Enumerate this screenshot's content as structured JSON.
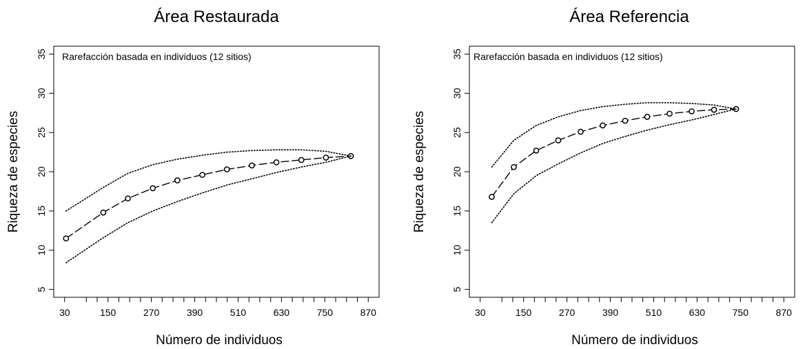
{
  "chart_data": [
    {
      "type": "line",
      "title": "Área Restaurada",
      "annotation": "Rarefacción basada en individuos (12 sitios)",
      "xlabel": "Número de individuos",
      "ylabel": "Riqueza de especies",
      "xlim": [
        0,
        900
      ],
      "ylim": [
        4,
        36
      ],
      "x_ticks": [
        30,
        150,
        270,
        390,
        510,
        630,
        750,
        870
      ],
      "x_minor_ticks": [
        90,
        120,
        180,
        210,
        240,
        300,
        330,
        360,
        420,
        450,
        480,
        540,
        570,
        600,
        660,
        690,
        720,
        780,
        810,
        840
      ],
      "y_ticks": [
        5,
        10,
        15,
        20,
        25,
        30,
        35
      ],
      "series": [
        {
          "role": "estimate",
          "style": "dashed-with-circles",
          "x": [
            34,
            137,
            205,
            274,
            342,
            411,
            479,
            548,
            616,
            685,
            753,
            822
          ],
          "y": [
            11.5,
            14.8,
            16.6,
            17.9,
            18.9,
            19.6,
            20.3,
            20.8,
            21.2,
            21.5,
            21.8,
            22.0
          ]
        },
        {
          "role": "upper",
          "style": "dotted",
          "x": [
            34,
            137,
            205,
            274,
            342,
            411,
            479,
            548,
            616,
            685,
            753,
            822
          ],
          "y": [
            15.0,
            18.0,
            19.8,
            20.9,
            21.6,
            22.1,
            22.5,
            22.7,
            22.8,
            22.8,
            22.6,
            22.0
          ]
        },
        {
          "role": "lower",
          "style": "dotted",
          "x": [
            34,
            137,
            205,
            274,
            342,
            411,
            479,
            548,
            616,
            685,
            753,
            822
          ],
          "y": [
            8.4,
            11.6,
            13.5,
            15.0,
            16.2,
            17.3,
            18.3,
            19.1,
            19.9,
            20.6,
            21.2,
            22.0
          ]
        }
      ]
    },
    {
      "type": "line",
      "title": "Área Referencia",
      "annotation": "Rarefacción basada en individuos (12 sitios)",
      "xlabel": "Número de individuos",
      "ylabel": "Riqueza de especies",
      "xlim": [
        0,
        900
      ],
      "ylim": [
        4,
        36
      ],
      "x_ticks": [
        30,
        150,
        270,
        390,
        510,
        630,
        750,
        870
      ],
      "x_minor_ticks": [
        90,
        120,
        180,
        210,
        240,
        300,
        330,
        360,
        420,
        450,
        480,
        540,
        570,
        600,
        660,
        690,
        720,
        780,
        810,
        840
      ],
      "y_ticks": [
        5,
        10,
        15,
        20,
        25,
        30,
        35
      ],
      "series": [
        {
          "role": "estimate",
          "style": "dashed-with-circles",
          "x": [
            62,
            123,
            185,
            246,
            308,
            369,
            431,
            492,
            554,
            615,
            677,
            738
          ],
          "y": [
            16.8,
            20.6,
            22.7,
            24.0,
            25.1,
            25.9,
            26.5,
            27.0,
            27.4,
            27.7,
            27.9,
            28.0
          ]
        },
        {
          "role": "upper",
          "style": "dotted",
          "x": [
            62,
            123,
            185,
            246,
            308,
            369,
            431,
            492,
            554,
            615,
            677,
            738
          ],
          "y": [
            20.6,
            24.0,
            25.9,
            27.0,
            27.8,
            28.3,
            28.6,
            28.8,
            28.8,
            28.7,
            28.5,
            28.0
          ]
        },
        {
          "role": "lower",
          "style": "dotted",
          "x": [
            62,
            123,
            185,
            246,
            308,
            369,
            431,
            492,
            554,
            615,
            677,
            738
          ],
          "y": [
            13.5,
            17.2,
            19.5,
            21.0,
            22.4,
            23.6,
            24.5,
            25.3,
            26.0,
            26.6,
            27.3,
            28.0
          ]
        }
      ]
    }
  ]
}
